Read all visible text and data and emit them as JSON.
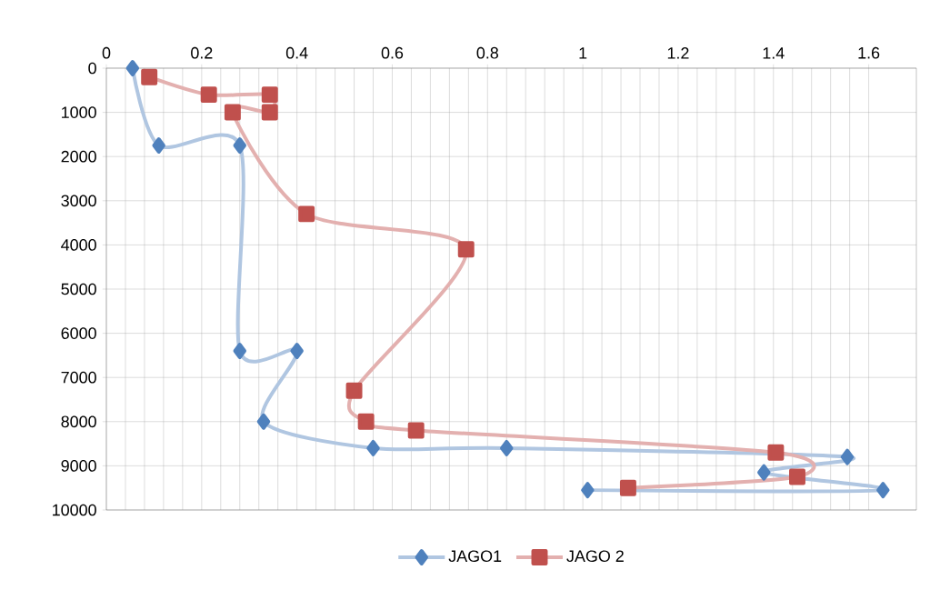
{
  "chart_data": {
    "type": "line",
    "xlim": [
      0,
      1.7
    ],
    "xticks": [
      0,
      0.2,
      0.4,
      0.6,
      0.8,
      1,
      1.2,
      1.4,
      1.6
    ],
    "ylim": [
      10000,
      0
    ],
    "yticks": [
      0,
      1000,
      2000,
      3000,
      4000,
      5000,
      6000,
      7000,
      8000,
      9000,
      10000
    ],
    "grid": true,
    "legend": "bottom",
    "series": [
      {
        "name": "JAGO1",
        "color": "#4f81bd",
        "marker": "diamond",
        "x": [
          0.055,
          0.11,
          0.28,
          0.28,
          0.4,
          0.33,
          0.56,
          0.84,
          1.555,
          1.38,
          1.63,
          1.01
        ],
        "values": [
          0,
          1750,
          1750,
          6400,
          6400,
          8000,
          8600,
          8600,
          8800,
          9150,
          9550,
          9550
        ]
      },
      {
        "name": "JAGO 2",
        "color": "#c0504d",
        "marker": "square",
        "x": [
          0.09,
          0.215,
          0.343,
          0.343,
          0.265,
          0.42,
          0.755,
          0.52,
          0.545,
          0.65,
          1.405,
          1.45,
          1.095
        ],
        "values": [
          200,
          600,
          600,
          1000,
          1000,
          3300,
          4100,
          7300,
          8000,
          8200,
          8700,
          9250,
          9500
        ]
      }
    ]
  }
}
